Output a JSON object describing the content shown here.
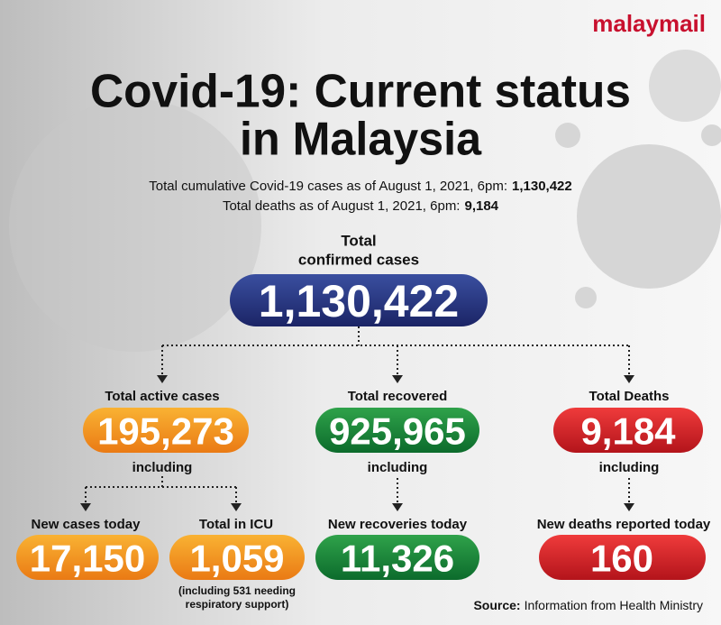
{
  "header": {
    "logo": "malaymail",
    "title_lines": [
      "Covid-19: Current status",
      "in Malaysia"
    ],
    "subtitle": [
      {
        "text": "Total cumulative Covid-19 cases as of August 1, 2021, 6pm:",
        "value": "1,130,422"
      },
      {
        "text": "Total deaths as of August 1, 2021, 6pm:",
        "value": "9,184"
      }
    ]
  },
  "total": {
    "label_lines": [
      "Total",
      "confirmed cases"
    ],
    "value": "1,130,422"
  },
  "branches": [
    {
      "label": "Total active cases",
      "value": "195,273",
      "including": "including"
    },
    {
      "label": "Total recovered",
      "value": "925,965",
      "including": "including"
    },
    {
      "label": "Total Deaths",
      "value": "9,184",
      "including": "including"
    }
  ],
  "details": [
    {
      "label": "New cases today",
      "value": "17,150"
    },
    {
      "label": "Total in ICU",
      "value": "1,059",
      "note_lines": [
        "(including 531 needing",
        "respiratory support)"
      ]
    },
    {
      "label": "New recoveries today",
      "value": "11,326"
    },
    {
      "label": "New deaths reported today",
      "value": "160"
    }
  ],
  "source": {
    "label": "Source:",
    "text": "Information from Health Ministry"
  }
}
